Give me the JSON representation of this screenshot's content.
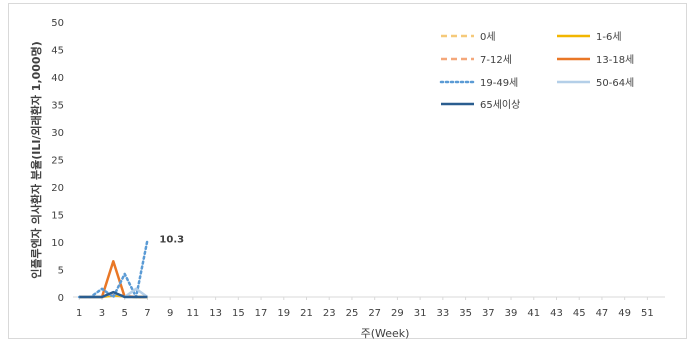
{
  "chart_data": {
    "type": "line",
    "title": "",
    "xlabel": "주(Week)",
    "ylabel": "인플루엔자 의사환자 분율(ILI/외래환자 1,000명)",
    "ylim": [
      0,
      50
    ],
    "xlim": [
      1,
      52
    ],
    "yticks": [
      0,
      5,
      10,
      15,
      20,
      25,
      30,
      35,
      40,
      45,
      50
    ],
    "xticks": [
      1,
      3,
      5,
      7,
      9,
      11,
      13,
      15,
      17,
      19,
      21,
      23,
      25,
      27,
      29,
      31,
      33,
      35,
      37,
      39,
      41,
      43,
      45,
      47,
      49,
      51
    ],
    "grid": false,
    "legend_position": "top-right",
    "annotations": [
      {
        "x": 7,
        "y": 10.3,
        "text": "10.3"
      }
    ],
    "series": [
      {
        "name": "0세",
        "color": "#F5C97A",
        "style": "dashed",
        "x": [
          1,
          2,
          3,
          4,
          5,
          6,
          7
        ],
        "values": [
          0,
          0,
          0,
          0.2,
          0.1,
          0,
          0
        ]
      },
      {
        "name": "1-6세",
        "color": "#F2B600",
        "style": "solid",
        "x": [
          1,
          2,
          3,
          4,
          5,
          6,
          7
        ],
        "values": [
          0,
          0,
          0,
          0.3,
          0.1,
          0,
          0
        ]
      },
      {
        "name": "7-12세",
        "color": "#F4A77A",
        "style": "dashed",
        "x": [
          1,
          2,
          3,
          4,
          5,
          6,
          7
        ],
        "values": [
          0,
          0,
          0,
          0.5,
          0.2,
          0,
          0
        ]
      },
      {
        "name": "13-18세",
        "color": "#E97726",
        "style": "solid",
        "x": [
          1,
          2,
          3,
          4,
          5
        ],
        "values": [
          0,
          0,
          0,
          6.5,
          0
        ]
      },
      {
        "name": "19-49세",
        "color": "#5B9BD5",
        "style": "dotted",
        "x": [
          1,
          2,
          3,
          4,
          5,
          6,
          7
        ],
        "values": [
          0,
          0,
          1.5,
          0,
          4.2,
          0,
          10.3
        ]
      },
      {
        "name": "50-64세",
        "color": "#B4CFE8",
        "style": "solid",
        "x": [
          1,
          2,
          3,
          4,
          5,
          6,
          7
        ],
        "values": [
          0,
          0,
          0,
          0.8,
          0,
          1.5,
          0
        ]
      },
      {
        "name": "65세이상",
        "color": "#2A5D8F",
        "style": "solid",
        "x": [
          1,
          2,
          3,
          4,
          5,
          6,
          7
        ],
        "values": [
          0,
          0,
          0,
          0.9,
          0,
          0,
          0
        ]
      }
    ]
  }
}
